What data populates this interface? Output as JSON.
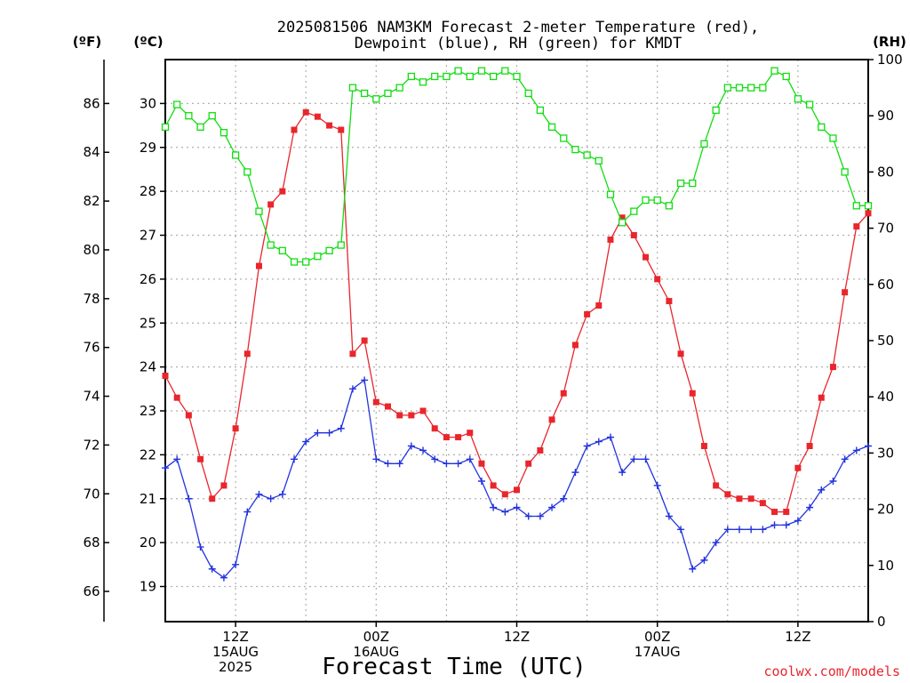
{
  "chart_data": {
    "type": "line",
    "title_line1": "2025081506 NAM3KM Forecast 2-meter Temperature (red),",
    "title_line2": "Dewpoint (blue), RH (green) for KMDT",
    "xlabel": "Forecast Time (UTC)",
    "unit_f": "(ºF)",
    "unit_c": "(ºC)",
    "unit_rh": "(RH)",
    "credit": "coolwx.com/models",
    "x_unit": "hours from 2025-08-15 06Z",
    "xlim": [
      0,
      60
    ],
    "ylim_c": [
      18.2,
      31.0
    ],
    "ylim_rh": [
      0,
      100
    ],
    "grid": true,
    "ticks_c": [
      "19",
      "20",
      "21",
      "22",
      "23",
      "24",
      "25",
      "26",
      "27",
      "28",
      "29",
      "30"
    ],
    "ticks_f": [
      "66",
      "68",
      "70",
      "72",
      "74",
      "76",
      "78",
      "80",
      "82",
      "84",
      "86"
    ],
    "ticks_rh": [
      "0",
      "10",
      "20",
      "30",
      "40",
      "50",
      "60",
      "70",
      "80",
      "90",
      "100"
    ],
    "x_ticks": [
      {
        "hour": 6,
        "lines": [
          "12Z",
          "15AUG",
          "2025"
        ]
      },
      {
        "hour": 18,
        "lines": [
          "00Z",
          "16AUG"
        ]
      },
      {
        "hour": 30,
        "lines": [
          "12Z"
        ]
      },
      {
        "hour": 42,
        "lines": [
          "00Z",
          "17AUG"
        ]
      },
      {
        "hour": 54,
        "lines": [
          "12Z"
        ]
      }
    ],
    "colors": {
      "temperature": "#e8262c",
      "dewpoint": "#2233dd",
      "rh": "#11dd11",
      "grid": "#b0b0b0"
    },
    "series": [
      {
        "key": "temperature",
        "unit": "°C",
        "marker": "filled-square",
        "values": [
          23.8,
          23.3,
          22.9,
          21.9,
          21.0,
          21.3,
          22.6,
          24.3,
          26.3,
          27.7,
          28.0,
          29.4,
          29.8,
          29.7,
          29.5,
          29.4,
          24.3,
          24.6,
          23.2,
          23.1,
          22.9,
          22.9,
          23.0,
          22.6,
          22.4,
          22.4,
          22.5,
          21.8,
          21.3,
          21.1,
          21.2,
          21.8,
          22.1,
          22.8,
          23.4,
          24.5,
          25.2,
          25.4,
          26.9,
          27.4,
          27.0,
          26.5,
          26.0,
          25.5,
          24.3,
          23.4,
          22.2,
          21.3,
          21.1,
          21.0,
          21.0,
          20.9,
          20.7,
          20.7,
          21.7,
          22.2,
          23.3,
          24.0,
          25.7,
          27.2,
          27.5
        ]
      },
      {
        "key": "dewpoint",
        "unit": "°C",
        "marker": "plus",
        "values": [
          21.7,
          21.9,
          21.0,
          19.9,
          19.4,
          19.2,
          19.5,
          20.7,
          21.1,
          21.0,
          21.1,
          21.9,
          22.3,
          22.5,
          22.5,
          22.6,
          23.5,
          23.7,
          21.9,
          21.8,
          21.8,
          22.2,
          22.1,
          21.9,
          21.8,
          21.8,
          21.9,
          21.4,
          20.8,
          20.7,
          20.8,
          20.6,
          20.6,
          20.8,
          21.0,
          21.6,
          22.2,
          22.3,
          22.4,
          21.6,
          21.9,
          21.9,
          21.3,
          20.6,
          20.3,
          19.4,
          19.6,
          20.0,
          20.3,
          20.3,
          20.3,
          20.3,
          20.4,
          20.4,
          20.5,
          20.8,
          21.2,
          21.4,
          21.9,
          22.1,
          22.2
        ]
      },
      {
        "key": "rh",
        "unit": "%",
        "marker": "hollow-square",
        "values": [
          88,
          92,
          90,
          88,
          90,
          87,
          83,
          80,
          73,
          67,
          66,
          64,
          64,
          65,
          66,
          67,
          95,
          94,
          93,
          94,
          95,
          97,
          96,
          97,
          97,
          98,
          97,
          98,
          97,
          98,
          97,
          94,
          91,
          88,
          86,
          84,
          83,
          82,
          76,
          71,
          73,
          75,
          75,
          74,
          78,
          78,
          85,
          91,
          95,
          95,
          95,
          95,
          98,
          97,
          93,
          92,
          88,
          86,
          80,
          74,
          74
        ]
      }
    ]
  }
}
